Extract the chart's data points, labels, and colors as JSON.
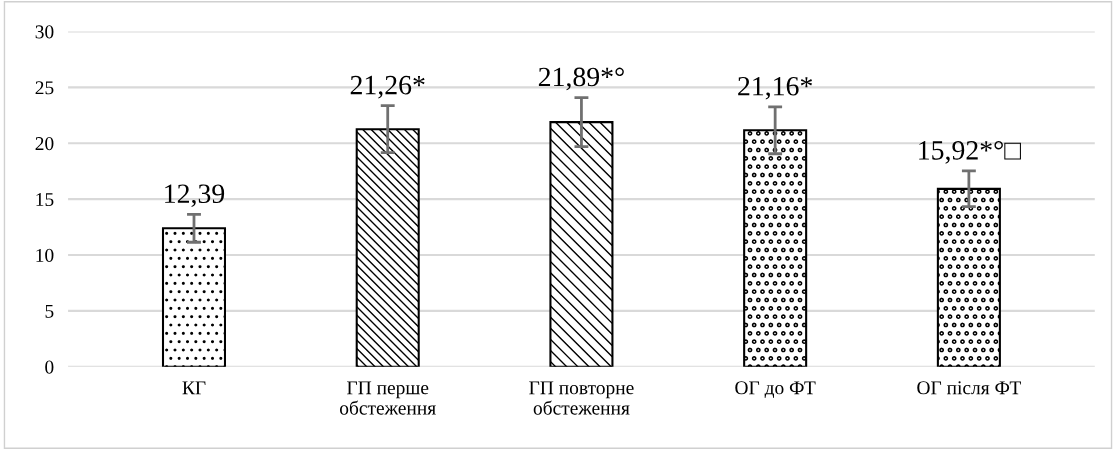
{
  "chart_data": {
    "type": "bar",
    "categories": [
      "КГ",
      "ГП перше\nобстеження",
      "ГП повторне\nобстеження",
      "ОГ до ФТ",
      "ОГ після ФТ"
    ],
    "values": [
      12.39,
      21.26,
      21.89,
      21.16,
      15.92
    ],
    "errors": [
      1.25,
      2.1,
      2.2,
      2.1,
      1.6
    ],
    "value_labels": [
      "12,39",
      "21,26*",
      "21,89*°",
      "21,16*",
      "15,92*°□"
    ],
    "color": "#000000",
    "ylim": [
      0,
      30
    ],
    "yticks": [
      0,
      5,
      10,
      15,
      20,
      25,
      30
    ],
    "grid": "y",
    "legend": false
  }
}
